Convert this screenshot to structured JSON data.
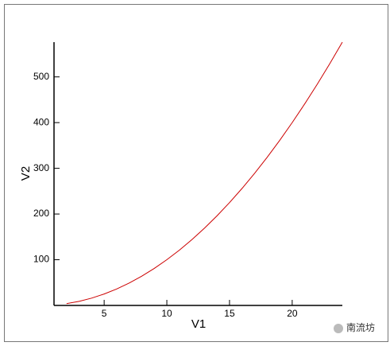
{
  "chart_data": {
    "type": "line",
    "x_label": "V1",
    "y_label": "V2",
    "x": [
      2,
      3,
      4,
      5,
      6,
      7,
      8,
      9,
      10,
      11,
      12,
      13,
      14,
      15,
      16,
      17,
      18,
      19,
      20,
      21,
      22,
      23,
      24
    ],
    "series": [
      {
        "color": "#cc0000",
        "values": [
          4,
          9,
          16,
          25,
          36,
          49,
          64,
          81,
          100,
          121,
          144,
          169,
          196,
          225,
          256,
          289,
          324,
          361,
          400,
          441,
          484,
          529,
          576
        ]
      }
    ],
    "xlim": [
      1,
      24
    ],
    "xticks": [
      5,
      10,
      15,
      20
    ],
    "ylim": [
      0,
      576
    ],
    "yticks": [
      100,
      200,
      300,
      400,
      500
    ],
    "watermark": "南流坊"
  }
}
